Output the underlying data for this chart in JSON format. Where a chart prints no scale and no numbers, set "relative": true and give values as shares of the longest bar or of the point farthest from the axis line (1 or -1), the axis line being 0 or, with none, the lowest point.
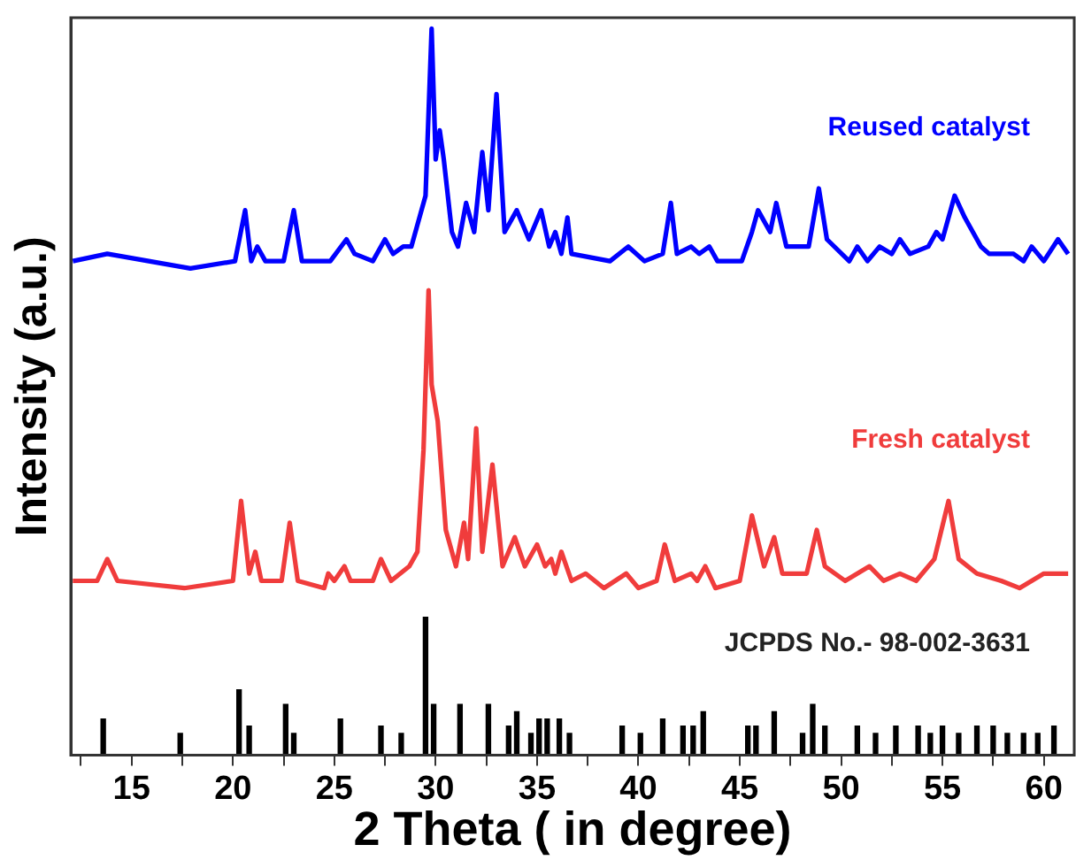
{
  "chart_data": {
    "type": "line",
    "relative": true,
    "xlabel": "2 Theta ( in degree)",
    "ylabel": "Intensity (a.u.)",
    "xlim": [
      12,
      61.5
    ],
    "xticks": [
      {
        "value": 12.5,
        "label": null
      },
      15,
      {
        "value": 17.5,
        "label": null
      },
      20,
      {
        "value": 22.5,
        "label": null
      },
      25,
      {
        "value": 27.5,
        "label": null
      },
      30,
      {
        "value": 32.5,
        "label": null
      },
      35,
      {
        "value": 37.5,
        "label": null
      },
      40,
      {
        "value": 42.5,
        "label": null
      },
      45,
      {
        "value": 47.5,
        "label": null
      },
      50,
      {
        "value": 52.5,
        "label": null
      },
      55,
      {
        "value": 57.5,
        "label": null
      },
      60
    ],
    "grid": false,
    "legend": false,
    "marker": "none",
    "series": [
      {
        "name": "Reused catalyst",
        "color": "#0000ff",
        "x": [
          12.1,
          13.8,
          17.9,
          20.1,
          20.6,
          20.9,
          21.2,
          21.6,
          22.5,
          23.0,
          23.4,
          24.8,
          25.6,
          26.0,
          26.9,
          27.5,
          27.9,
          28.4,
          28.8,
          29.5,
          29.8,
          30.0,
          30.2,
          30.4,
          30.8,
          31.1,
          31.5,
          31.9,
          32.3,
          32.6,
          33.0,
          33.4,
          34.0,
          34.6,
          35.2,
          35.6,
          35.9,
          36.2,
          36.5,
          36.7,
          38.6,
          39.5,
          40.3,
          41.2,
          41.6,
          41.9,
          42.6,
          43.0,
          43.5,
          43.9,
          45.1,
          45.6,
          45.9,
          46.5,
          46.8,
          47.3,
          48.4,
          48.9,
          49.3,
          50.4,
          50.8,
          51.3,
          51.9,
          52.5,
          52.9,
          53.4,
          54.3,
          54.7,
          55.0,
          55.6,
          56.1,
          56.9,
          57.3,
          58.5,
          59.0,
          59.4,
          60.0,
          60.7,
          61.2
        ],
        "values": [
          0.68,
          0.69,
          0.67,
          0.68,
          0.75,
          0.68,
          0.7,
          0.68,
          0.68,
          0.75,
          0.68,
          0.68,
          0.71,
          0.69,
          0.68,
          0.71,
          0.69,
          0.7,
          0.7,
          0.77,
          1,
          0.82,
          0.86,
          0.82,
          0.72,
          0.7,
          0.76,
          0.72,
          0.83,
          0.75,
          0.91,
          0.72,
          0.75,
          0.71,
          0.75,
          0.7,
          0.72,
          0.69,
          0.74,
          0.69,
          0.68,
          0.7,
          0.68,
          0.69,
          0.76,
          0.69,
          0.7,
          0.69,
          0.7,
          0.68,
          0.68,
          0.72,
          0.75,
          0.72,
          0.76,
          0.7,
          0.7,
          0.78,
          0.71,
          0.68,
          0.7,
          0.68,
          0.7,
          0.69,
          0.71,
          0.69,
          0.7,
          0.72,
          0.71,
          0.77,
          0.74,
          0.7,
          0.69,
          0.69,
          0.68,
          0.7,
          0.68,
          0.71,
          0.69
        ]
      },
      {
        "name": "Fresh catalyst",
        "color": "#f03c3c",
        "x": [
          12.1,
          13.3,
          13.8,
          14.3,
          17.6,
          20.0,
          20.4,
          20.8,
          21.1,
          21.4,
          22.4,
          22.8,
          23.2,
          24.5,
          24.7,
          25.0,
          25.5,
          25.8,
          26.9,
          27.3,
          27.8,
          28.7,
          29.1,
          29.4,
          29.65,
          29.8,
          30.1,
          30.5,
          31.0,
          31.4,
          31.6,
          32.0,
          32.3,
          32.8,
          33.3,
          33.9,
          34.4,
          35.0,
          35.4,
          35.7,
          35.9,
          36.2,
          36.7,
          37.4,
          38.3,
          39.4,
          40.0,
          40.9,
          41.3,
          41.8,
          42.6,
          42.9,
          43.3,
          43.8,
          45.0,
          45.6,
          46.2,
          46.7,
          47.1,
          48.3,
          48.8,
          49.2,
          50.2,
          51.4,
          52.1,
          52.9,
          53.7,
          54.6,
          55.3,
          55.8,
          56.7,
          57.9,
          58.8,
          60.0,
          61.2
        ],
        "values": [
          0.24,
          0.24,
          0.27,
          0.24,
          0.23,
          0.24,
          0.35,
          0.25,
          0.28,
          0.24,
          0.24,
          0.32,
          0.24,
          0.23,
          0.25,
          0.24,
          0.26,
          0.24,
          0.24,
          0.27,
          0.24,
          0.26,
          0.28,
          0.42,
          0.64,
          0.51,
          0.46,
          0.31,
          0.26,
          0.32,
          0.27,
          0.45,
          0.28,
          0.4,
          0.26,
          0.3,
          0.26,
          0.29,
          0.26,
          0.27,
          0.25,
          0.28,
          0.24,
          0.25,
          0.23,
          0.25,
          0.23,
          0.24,
          0.29,
          0.24,
          0.25,
          0.24,
          0.26,
          0.23,
          0.24,
          0.33,
          0.26,
          0.3,
          0.25,
          0.25,
          0.31,
          0.26,
          0.24,
          0.26,
          0.24,
          0.25,
          0.24,
          0.27,
          0.35,
          0.27,
          0.25,
          0.24,
          0.23,
          0.25,
          0.25
        ]
      },
      {
        "name": "JCPDS No.- 98-002-3631",
        "type": "bar",
        "color": "#000000",
        "x": [
          13.6,
          17.4,
          20.3,
          20.8,
          22.6,
          23.0,
          25.3,
          27.3,
          28.3,
          29.5,
          29.9,
          31.2,
          32.6,
          33.6,
          34.0,
          34.7,
          35.1,
          35.5,
          36.1,
          36.6,
          39.2,
          40.1,
          41.2,
          42.2,
          42.7,
          43.2,
          45.4,
          45.8,
          46.7,
          48.1,
          48.6,
          49.2,
          50.8,
          51.7,
          52.7,
          53.8,
          54.4,
          55.0,
          55.8,
          56.7,
          57.5,
          58.2,
          59.0,
          59.7,
          60.5
        ],
        "values": [
          0.05,
          0.03,
          0.09,
          0.04,
          0.07,
          0.03,
          0.05,
          0.04,
          0.03,
          0.19,
          0.07,
          0.07,
          0.07,
          0.04,
          0.06,
          0.03,
          0.05,
          0.05,
          0.05,
          0.03,
          0.04,
          0.03,
          0.05,
          0.04,
          0.04,
          0.06,
          0.04,
          0.04,
          0.06,
          0.03,
          0.07,
          0.04,
          0.04,
          0.03,
          0.04,
          0.04,
          0.03,
          0.04,
          0.03,
          0.04,
          0.04,
          0.03,
          0.03,
          0.03,
          0.04
        ]
      }
    ]
  }
}
